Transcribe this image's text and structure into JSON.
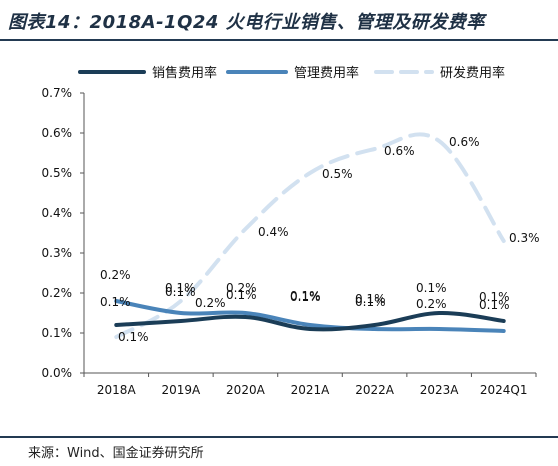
{
  "title": "图表14：2018A-1Q24 火电行业销售、管理及研发费率",
  "source": "来源：Wind、国金证券研究所",
  "chart_data": {
    "type": "line",
    "categories": [
      "2018A",
      "2019A",
      "2020A",
      "2021A",
      "2022A",
      "2023A",
      "2024Q1"
    ],
    "y_ticks": [
      "0.0%",
      "0.1%",
      "0.2%",
      "0.3%",
      "0.4%",
      "0.5%",
      "0.6%",
      "0.7%"
    ],
    "ylim": [
      0,
      0.7
    ],
    "grid": false,
    "legend_position": "top",
    "series": [
      {
        "name": "销售费用率",
        "color": "#1b3d57",
        "style": "solid",
        "values": [
          0.12,
          0.13,
          0.14,
          0.11,
          0.12,
          0.15,
          0.13
        ],
        "labels": [
          "0.1%",
          "0.1%",
          "0.1%",
          "0.1%",
          "0.1%",
          "0.2%",
          "0.1%"
        ]
      },
      {
        "name": "管理费用率",
        "color": "#4a84b9",
        "style": "solid",
        "values": [
          0.18,
          0.15,
          0.15,
          0.12,
          0.11,
          0.11,
          0.105
        ],
        "labels": [
          "0.2%",
          "0.1%",
          "0.2%",
          "0.1%",
          "0.1%",
          "0.1%",
          "0.1%"
        ]
      },
      {
        "name": "研发费用率",
        "color": "#d2e1f0",
        "style": "dashed",
        "values": [
          0.09,
          0.18,
          0.36,
          0.5,
          0.56,
          0.58,
          0.33
        ],
        "labels": [
          "0.1%",
          "0.2%",
          "0.4%",
          "0.5%",
          "0.6%",
          "0.6%",
          "0.3%"
        ]
      }
    ]
  }
}
